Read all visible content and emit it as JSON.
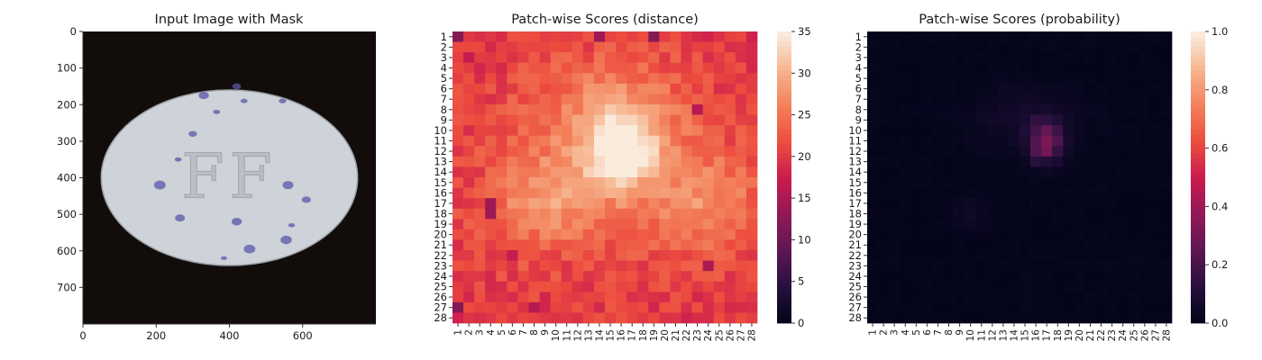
{
  "chart_data": [
    {
      "type": "image",
      "title": "Input Image with Mask",
      "xlim": [
        0,
        800
      ],
      "ylim": [
        800,
        0
      ],
      "xticks": [
        0,
        200,
        400,
        600
      ],
      "yticks": [
        0,
        100,
        200,
        300,
        400,
        500,
        600,
        700
      ],
      "image": {
        "background": "#120d0b",
        "object": "pill",
        "center": [
          400,
          400
        ],
        "radius": [
          350,
          240
        ],
        "fill_color": "#cdd3d8",
        "imprint": "FF",
        "speck_color": "#5b55a8",
        "specks": [
          [
            330,
            175
          ],
          [
            365,
            220
          ],
          [
            420,
            150
          ],
          [
            440,
            190
          ],
          [
            545,
            190
          ],
          [
            300,
            280
          ],
          [
            260,
            350
          ],
          [
            210,
            420
          ],
          [
            560,
            420
          ],
          [
            610,
            460
          ],
          [
            265,
            510
          ],
          [
            420,
            520
          ],
          [
            570,
            530
          ],
          [
            455,
            595
          ],
          [
            385,
            620
          ],
          [
            555,
            570
          ]
        ]
      }
    },
    {
      "type": "heatmap",
      "title": "Patch-wise Scores (distance)",
      "x_labels": [
        "1",
        "2",
        "3",
        "4",
        "5",
        "6",
        "7",
        "8",
        "9",
        "10",
        "11",
        "12",
        "13",
        "14",
        "15",
        "16",
        "17",
        "18",
        "19",
        "20",
        "21",
        "22",
        "23",
        "24",
        "25",
        "26",
        "27",
        "28"
      ],
      "y_labels": [
        "1",
        "2",
        "3",
        "4",
        "5",
        "6",
        "7",
        "8",
        "9",
        "10",
        "11",
        "12",
        "13",
        "14",
        "15",
        "16",
        "17",
        "18",
        "19",
        "20",
        "21",
        "22",
        "23",
        "24",
        "25",
        "26",
        "27",
        "28"
      ],
      "rows": 28,
      "cols": 28,
      "colormap": "rocket",
      "vmin": 0,
      "vmax": 35,
      "colorbar_ticks": [
        0,
        5,
        10,
        15,
        20,
        25,
        30,
        35
      ],
      "base_value": 20,
      "components": [
        {
          "center": [
            16,
            12
          ],
          "spread": [
            2.2,
            2.6
          ],
          "amplitude": 14
        },
        {
          "center": [
            15,
            9
          ],
          "spread": [
            5.5,
            4.5
          ],
          "amplitude": 7
        },
        {
          "center": [
            9,
            17
          ],
          "spread": [
            3.5,
            3.0
          ],
          "amplitude": 6
        },
        {
          "center": [
            24,
            17
          ],
          "spread": [
            3.5,
            3.2
          ],
          "amplitude": 6
        },
        {
          "center": [
            15,
            17
          ],
          "spread": [
            10,
            6
          ],
          "amplitude": 2
        }
      ],
      "cell_overrides": [
        [
          1,
          1,
          12
        ],
        [
          19,
          1,
          12
        ],
        [
          14,
          1,
          14
        ],
        [
          4,
          17,
          14
        ],
        [
          4,
          18,
          14
        ],
        [
          1,
          27,
          12
        ],
        [
          8,
          27,
          16
        ],
        [
          23,
          8,
          16
        ],
        [
          24,
          23,
          15
        ],
        [
          2,
          3,
          17
        ],
        [
          6,
          22,
          17
        ]
      ]
    },
    {
      "type": "heatmap",
      "title": "Patch-wise Scores (probability)",
      "x_labels": [
        "1",
        "2",
        "3",
        "4",
        "5",
        "6",
        "7",
        "8",
        "9",
        "10",
        "11",
        "12",
        "13",
        "14",
        "15",
        "16",
        "17",
        "18",
        "19",
        "20",
        "21",
        "22",
        "23",
        "24",
        "25",
        "26",
        "27",
        "28"
      ],
      "y_labels": [
        "1",
        "2",
        "3",
        "4",
        "5",
        "6",
        "7",
        "8",
        "9",
        "10",
        "11",
        "12",
        "13",
        "14",
        "15",
        "16",
        "17",
        "18",
        "19",
        "20",
        "21",
        "22",
        "23",
        "24",
        "25",
        "26",
        "27",
        "28"
      ],
      "rows": 28,
      "cols": 28,
      "colormap": "rocket",
      "vmin": 0,
      "vmax": 1,
      "colorbar_ticks": [
        0.0,
        0.2,
        0.4,
        0.6,
        0.8,
        1.0
      ],
      "colorbar_tick_labels": [
        "0.0",
        "0.2",
        "0.4",
        "0.6",
        "0.8",
        "1.0"
      ],
      "base_value": 0.005,
      "components": [
        {
          "center": [
            17,
            11
          ],
          "spread": [
            1.0,
            1.3
          ],
          "amplitude": 0.3
        },
        {
          "center": [
            15,
            9
          ],
          "spread": [
            3.5,
            2.2
          ],
          "amplitude": 0.05
        },
        {
          "center": [
            10,
            18
          ],
          "spread": [
            1.2,
            1.0
          ],
          "amplitude": 0.04
        }
      ],
      "cell_overrides": [
        [
          17,
          11,
          0.32
        ],
        [
          17,
          12,
          0.3
        ],
        [
          16,
          12,
          0.22
        ],
        [
          18,
          11,
          0.22
        ],
        [
          16,
          9,
          0.14
        ],
        [
          16,
          13,
          0.12
        ]
      ]
    }
  ]
}
